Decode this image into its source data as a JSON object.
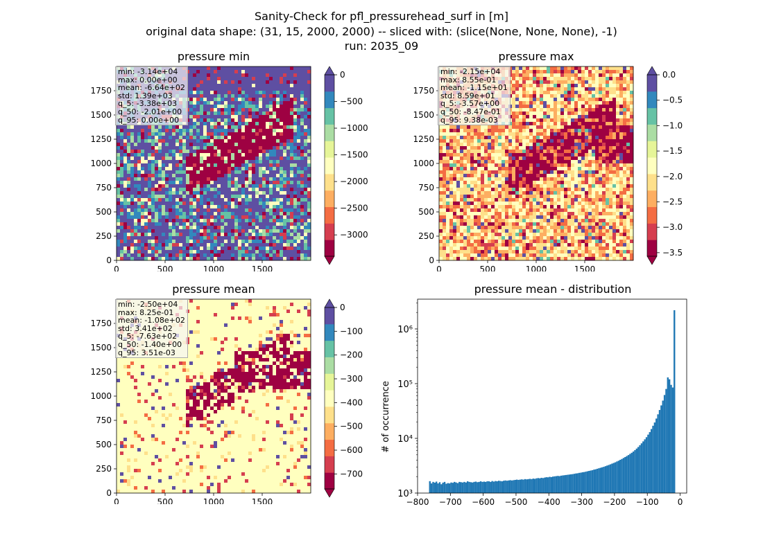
{
  "figure": {
    "title_lines": [
      "Sanity-Check for pfl_pressurehead_surf in [m]",
      "original data shape: (31, 15, 2000, 2000) -- sliced with: (slice(None, None, None), -1)",
      "run: 2035_09"
    ]
  },
  "colors": {
    "spectral": [
      "#9e0142",
      "#d53e4f",
      "#f46d43",
      "#fdae61",
      "#fee08b",
      "#ffffbf",
      "#e6f598",
      "#abdda4",
      "#66c2a5",
      "#3288bd",
      "#5e4fa2"
    ],
    "hist_bar": "#1f77b4"
  },
  "panels": [
    {
      "id": "min",
      "title": "pressure min",
      "stats": [
        "min: -3.14e+04",
        "max: 0.00e+00",
        "mean: -6.64e+02",
        "std: 1.39e+03",
        "q_5: -3.38e+03",
        "q_50: -2.01e+00",
        "q_95: 0.00e+00"
      ],
      "x_ticks": [
        "0",
        "500",
        "1000",
        "1500"
      ],
      "y_ticks": [
        "0",
        "250",
        "500",
        "750",
        "1000",
        "1250",
        "1500",
        "1750"
      ],
      "colorbar": {
        "vmin": -3400,
        "vmax": 0,
        "ticks": [
          0,
          -500,
          -1000,
          -1500,
          -2000,
          -2500,
          -3000
        ],
        "tick_labels": [
          "0",
          "−500",
          "−1000",
          "−1500",
          "−2000",
          "−2500",
          "−3000"
        ]
      }
    },
    {
      "id": "max",
      "title": "pressure max",
      "stats": [
        "min: -2.15e+04",
        "max: 8.55e-01",
        "mean: -1.15e+01",
        "std: 8.59e+01",
        "q_5: -3.57e+00",
        "q_50: -8.47e-01",
        "q_95: 9.38e-03"
      ],
      "x_ticks": [
        "0",
        "500",
        "1000",
        "1500"
      ],
      "y_ticks": [
        "0",
        "250",
        "500",
        "750",
        "1000",
        "1250",
        "1500",
        "1750"
      ],
      "colorbar": {
        "vmin": -3.57,
        "vmax": 0.0,
        "ticks": [
          0,
          -0.5,
          -1,
          -1.5,
          -2,
          -2.5,
          -3,
          -3.5
        ],
        "tick_labels": [
          "0.0",
          "−0.5",
          "−1.0",
          "−1.5",
          "−2.0",
          "−2.5",
          "−3.0",
          "−3.5"
        ]
      }
    },
    {
      "id": "mean",
      "title": "pressure mean",
      "stats": [
        "min: -2.50e+04",
        "max: 8.25e-01",
        "mean: -1.08e+02",
        "std: 3.41e+02",
        "q_5: -7.63e+02",
        "q_50: -1.40e+00",
        "q_95: 3.51e-03"
      ],
      "x_ticks": [
        "0",
        "500",
        "1000",
        "1500"
      ],
      "y_ticks": [
        "0",
        "250",
        "500",
        "750",
        "1000",
        "1250",
        "1500",
        "1750"
      ],
      "colorbar": {
        "vmin": -763,
        "vmax": 0,
        "ticks": [
          0,
          -100,
          -200,
          -300,
          -400,
          -500,
          -600,
          -700
        ],
        "tick_labels": [
          "0",
          "−100",
          "−200",
          "−300",
          "−400",
          "−500",
          "−600",
          "−700"
        ]
      }
    }
  ],
  "chart_data": {
    "type": "bar",
    "title": "pressure mean - distribution",
    "xlabel": "",
    "ylabel": "# of occurrence",
    "yscale": "log",
    "xlim": [
      -800,
      20
    ],
    "ylim": [
      1000,
      3500000
    ],
    "x_ticks": [
      -800,
      -700,
      -600,
      -500,
      -400,
      -300,
      -200,
      -100,
      0
    ],
    "x_tick_labels": [
      "−800",
      "−700",
      "−600",
      "−500",
      "−400",
      "−300",
      "−200",
      "−100",
      "0"
    ],
    "y_ticks": [
      1000,
      10000,
      100000,
      1000000
    ],
    "y_tick_labels": [
      "10³",
      "10⁴",
      "10⁵",
      "10⁶"
    ],
    "bin_width": 5,
    "bins_start": [
      -765,
      -760,
      -755,
      -750,
      -745,
      -740,
      -735,
      -730,
      -725,
      -720,
      -715,
      -710,
      -705,
      -700,
      -695,
      -690,
      -685,
      -680,
      -675,
      -670,
      -665,
      -660,
      -655,
      -650,
      -645,
      -640,
      -635,
      -630,
      -625,
      -620,
      -615,
      -610,
      -605,
      -600,
      -595,
      -590,
      -585,
      -580,
      -575,
      -570,
      -565,
      -560,
      -555,
      -550,
      -545,
      -540,
      -535,
      -530,
      -525,
      -520,
      -515,
      -510,
      -505,
      -500,
      -495,
      -490,
      -485,
      -480,
      -475,
      -470,
      -465,
      -460,
      -455,
      -450,
      -445,
      -440,
      -435,
      -430,
      -425,
      -420,
      -415,
      -410,
      -405,
      -400,
      -395,
      -390,
      -385,
      -380,
      -375,
      -370,
      -365,
      -360,
      -355,
      -350,
      -345,
      -340,
      -335,
      -330,
      -325,
      -320,
      -315,
      -310,
      -305,
      -300,
      -295,
      -290,
      -285,
      -280,
      -275,
      -270,
      -265,
      -260,
      -255,
      -250,
      -245,
      -240,
      -235,
      -230,
      -225,
      -220,
      -215,
      -210,
      -205,
      -200,
      -195,
      -190,
      -185,
      -180,
      -175,
      -170,
      -165,
      -160,
      -155,
      -150,
      -145,
      -140,
      -135,
      -130,
      -125,
      -120,
      -115,
      -110,
      -105,
      -100,
      -95,
      -90,
      -85,
      -80,
      -75,
      -70,
      -65,
      -60,
      -55,
      -50,
      -45,
      -40,
      -35,
      -30,
      -25,
      -20,
      -15,
      -10,
      -5,
      0
    ],
    "values": [
      1650,
      1500,
      1600,
      1550,
      1620,
      1500,
      1580,
      1450,
      1550,
      1600,
      1480,
      1520,
      1500,
      1560,
      1540,
      1600,
      1560,
      1520,
      1600,
      1580,
      1560,
      1600,
      1560,
      1640,
      1600,
      1580,
      1560,
      1600,
      1620,
      1580,
      1600,
      1640,
      1600,
      1620,
      1600,
      1640,
      1640,
      1600,
      1660,
      1620,
      1660,
      1640,
      1680,
      1660,
      1640,
      1680,
      1700,
      1680,
      1700,
      1720,
      1700,
      1720,
      1740,
      1760,
      1740,
      1760,
      1780,
      1760,
      1800,
      1780,
      1800,
      1820,
      1800,
      1840,
      1820,
      1860,
      1880,
      1860,
      1900,
      1880,
      1920,
      1950,
      1940,
      1980,
      1960,
      2000,
      2020,
      2040,
      2060,
      2040,
      2080,
      2100,
      2120,
      2140,
      2160,
      2180,
      2200,
      2220,
      2250,
      2280,
      2300,
      2340,
      2360,
      2400,
      2420,
      2460,
      2500,
      2540,
      2580,
      2620,
      2680,
      2720,
      2780,
      2840,
      2900,
      2960,
      3020,
      3100,
      3180,
      3260,
      3350,
      3450,
      3550,
      3650,
      3780,
      3900,
      4050,
      4200,
      4380,
      4550,
      4750,
      4950,
      5200,
      5450,
      5750,
      6100,
      6500,
      6950,
      7500,
      8100,
      8800,
      9600,
      10500,
      11700,
      13000,
      14800,
      17000,
      19500,
      23000,
      27500,
      33000,
      40000,
      49000,
      62000,
      80000,
      130000,
      120000,
      95000,
      85000,
      2200000
    ]
  }
}
